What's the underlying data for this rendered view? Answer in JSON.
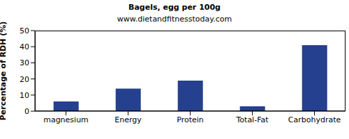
{
  "chart_data": {
    "type": "bar",
    "title": "Bagels, egg per 100g",
    "subtitle": "www.dietandfitnesstoday.com",
    "y_label": "Percentage of RDH (%)",
    "categories": [
      "magnesium",
      "Energy",
      "Protein",
      "Total-Fat",
      "Carbohydrate"
    ],
    "values": [
      6,
      14,
      19,
      3,
      41
    ],
    "color": "#24408e",
    "ylim": [
      0,
      50
    ],
    "yticks": [
      0,
      10,
      20,
      30,
      40,
      50
    ],
    "grid": false
  }
}
